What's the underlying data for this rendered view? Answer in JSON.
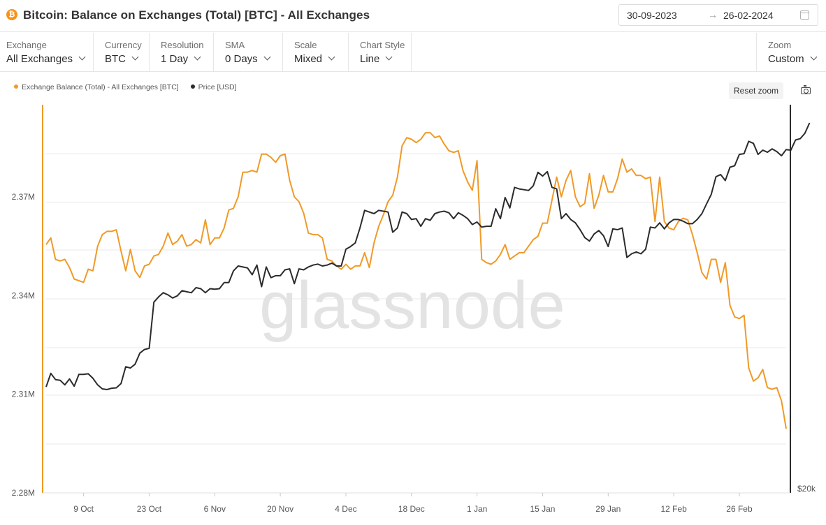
{
  "header": {
    "coin_symbol": "₿",
    "title": "Bitcoin: Balance on Exchanges (Total) [BTC] - All Exchanges",
    "date_from": "30-09-2023",
    "date_arrow": "→",
    "date_to": "26-02-2024"
  },
  "controls": [
    {
      "label": "Exchange",
      "value": "All Exchanges"
    },
    {
      "label": "Currency",
      "value": "BTC"
    },
    {
      "label": "Resolution",
      "value": "1 Day"
    },
    {
      "label": "SMA",
      "value": "0 Days"
    },
    {
      "label": "Scale",
      "value": "Mixed"
    },
    {
      "label": "Chart Style",
      "value": "Line"
    },
    {
      "label": "Zoom",
      "value": "Custom"
    }
  ],
  "toolbar": {
    "reset_zoom": "Reset zoom"
  },
  "watermark": "glassnode",
  "colors": {
    "balance": "#f09a27",
    "price": "#2b2b2b",
    "grid": "#e9e9e9"
  },
  "icons": [
    "bitcoin-icon",
    "calendar-icon",
    "chevron-down-icon",
    "camera-icon"
  ],
  "chart_data": {
    "type": "line",
    "title": "Bitcoin: Balance on Exchanges (Total) [BTC] - All Exchanges",
    "x_ticks": [
      "9 Oct",
      "23 Oct",
      "6 Nov",
      "20 Nov",
      "4 Dec",
      "18 Dec",
      "1 Jan",
      "15 Jan",
      "29 Jan",
      "12 Feb",
      "26 Feb"
    ],
    "x_start": "2023-10-01",
    "y_left": {
      "ticks": [
        "2.28M",
        "2.31M",
        "2.34M",
        "2.37M"
      ],
      "values": [
        2280000,
        2310000,
        2340000,
        2370000
      ],
      "range": [
        2280000,
        2398000
      ]
    },
    "y_right": {
      "ticks": [
        "$20k"
      ],
      "scale": "log"
    },
    "grid": true,
    "legend_position": "top-left",
    "series": [
      {
        "name": "Exchange Balance (Total) - All Exchanges [BTC]",
        "axis": "left",
        "values": [
          2355500,
          2357500,
          2351000,
          2350500,
          2351000,
          2348500,
          2345000,
          2344500,
          2344000,
          2348000,
          2347500,
          2355000,
          2358500,
          2359500,
          2359500,
          2360000,
          2353500,
          2347500,
          2354000,
          2347500,
          2345500,
          2349000,
          2349500,
          2352000,
          2352500,
          2355000,
          2359000,
          2355500,
          2356500,
          2358500,
          2355000,
          2355500,
          2357000,
          2356000,
          2363000,
          2355500,
          2357500,
          2357500,
          2360500,
          2366000,
          2366500,
          2370000,
          2377500,
          2377500,
          2378000,
          2377500,
          2383000,
          2383000,
          2382000,
          2380500,
          2382500,
          2383000,
          2375000,
          2370000,
          2368500,
          2365000,
          2359000,
          2358500,
          2358500,
          2357500,
          2351000,
          2350500,
          2349000,
          2348000,
          2349500,
          2348000,
          2349000,
          2349000,
          2353000,
          2348500,
          2356000,
          2361000,
          2364500,
          2368500,
          2370500,
          2376000,
          2385500,
          2388000,
          2387500,
          2386500,
          2387500,
          2389500,
          2389500,
          2388000,
          2388500,
          2386000,
          2384000,
          2383500,
          2384000,
          2378000,
          2374500,
          2372000,
          2381000,
          2351000,
          2350000,
          2349500,
          2350500,
          2352500,
          2355500,
          2351000,
          2352000,
          2353000,
          2353000,
          2355000,
          2357000,
          2358000,
          2362000,
          2362000,
          2369000,
          2376000,
          2370000,
          2375000,
          2378000,
          2370000,
          2367000,
          2368000,
          2377000,
          2366500,
          2370500,
          2376500,
          2371500,
          2371500,
          2375500,
          2381500,
          2377500,
          2378500,
          2376500,
          2376500,
          2375500,
          2376000,
          2362500,
          2376000,
          2362500,
          2360500,
          2360000,
          2362500,
          2363500,
          2363000,
          2358500,
          2353000,
          2347000,
          2345000,
          2351000,
          2351000,
          2344000,
          2350000,
          2337000,
          2333500,
          2333000,
          2334000,
          2318000,
          2314000,
          2315000,
          2317500,
          2312000,
          2311500,
          2312000,
          2308000,
          2299500
        ]
      },
      {
        "name": "Price [USD]",
        "axis": "right",
        "values": [
          26950,
          27980,
          27500,
          27450,
          27100,
          27550,
          27000,
          27900,
          27900,
          27950,
          27600,
          27100,
          26800,
          26750,
          26850,
          26880,
          27200,
          28500,
          28400,
          28700,
          29600,
          29900,
          30000,
          34100,
          34600,
          35000,
          34800,
          34500,
          34700,
          35200,
          35100,
          35000,
          35500,
          35400,
          35000,
          35400,
          35350,
          35400,
          36000,
          36000,
          37200,
          37700,
          37600,
          37500,
          36800,
          37800,
          35600,
          37600,
          36500,
          36700,
          36700,
          37300,
          37400,
          35900,
          37400,
          37300,
          37600,
          37800,
          37900,
          37700,
          37800,
          38000,
          37700,
          37700,
          39500,
          39800,
          40200,
          41900,
          44000,
          43800,
          43600,
          44000,
          43900,
          43800,
          41400,
          41900,
          43800,
          43600,
          42900,
          43000,
          42100,
          43000,
          42800,
          43600,
          43800,
          43900,
          43700,
          43000,
          43700,
          43400,
          43000,
          42300,
          42600,
          42000,
          42100,
          42100,
          44200,
          43000,
          45600,
          44300,
          46900,
          46700,
          46600,
          46500,
          47100,
          48900,
          48400,
          49000,
          46900,
          46700,
          43000,
          43600,
          42900,
          42500,
          41700,
          40800,
          40400,
          41200,
          41600,
          41000,
          39800,
          41800,
          41700,
          41900,
          38600,
          39000,
          39200,
          39000,
          39500,
          42000,
          41900,
          42500,
          41800,
          42500,
          42900,
          42900,
          42700,
          42400,
          42400,
          42900,
          43600,
          44800,
          46000,
          48300,
          48600,
          47800,
          49600,
          49800,
          51400,
          51500,
          53300,
          53000,
          51400,
          52000,
          51700,
          52200,
          51800,
          51200,
          52100,
          52000,
          53500,
          53700,
          54500,
          56100
        ]
      }
    ]
  }
}
